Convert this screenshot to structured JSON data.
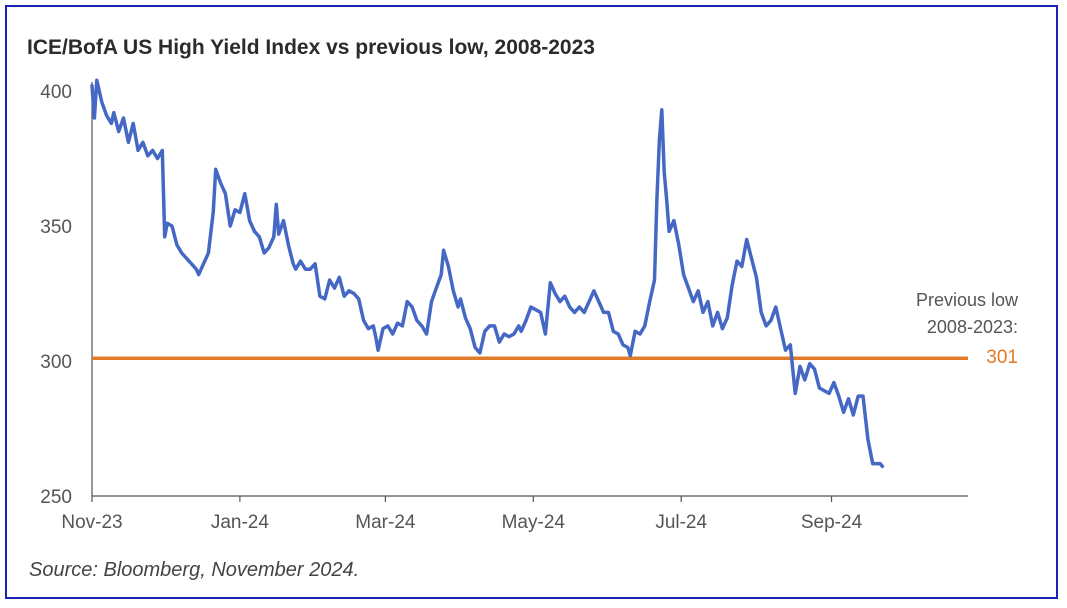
{
  "chart_data": {
    "type": "line",
    "title": "ICE/BofA US High Yield Index vs previous low, 2008-2023",
    "xlabel": "",
    "ylabel": "",
    "ylim": [
      250,
      400
    ],
    "yticks": [
      400,
      350,
      300,
      250
    ],
    "x_tick_labels": [
      "Nov-23",
      "Jan-24",
      "Mar-24",
      "May-24",
      "Jul-24",
      "Sep-24"
    ],
    "x_tick_day_offsets": [
      0,
      61,
      121,
      182,
      243,
      305
    ],
    "x_range_days": [
      0,
      365
    ],
    "series": [
      {
        "name": "ICE/BofA US High Yield Index",
        "color": "#4468c4",
        "points": [
          [
            0,
            402
          ],
          [
            1,
            390
          ],
          [
            2,
            404
          ],
          [
            4,
            396
          ],
          [
            6,
            391
          ],
          [
            8,
            388
          ],
          [
            9,
            392
          ],
          [
            11,
            385
          ],
          [
            13,
            390
          ],
          [
            15,
            381
          ],
          [
            17,
            388
          ],
          [
            19,
            378
          ],
          [
            21,
            381
          ],
          [
            23,
            376
          ],
          [
            25,
            378
          ],
          [
            27,
            375
          ],
          [
            29,
            378
          ],
          [
            30,
            346
          ],
          [
            31,
            351
          ],
          [
            33,
            350
          ],
          [
            35,
            343
          ],
          [
            37,
            340
          ],
          [
            40,
            337
          ],
          [
            43,
            334
          ],
          [
            44,
            332
          ],
          [
            46,
            336
          ],
          [
            48,
            340
          ],
          [
            50,
            355
          ],
          [
            51,
            371
          ],
          [
            53,
            366
          ],
          [
            55,
            362
          ],
          [
            57,
            350
          ],
          [
            59,
            356
          ],
          [
            61,
            355
          ],
          [
            63,
            362
          ],
          [
            65,
            352
          ],
          [
            67,
            348
          ],
          [
            69,
            346
          ],
          [
            71,
            340
          ],
          [
            73,
            342
          ],
          [
            75,
            346
          ],
          [
            76,
            358
          ],
          [
            77,
            347
          ],
          [
            79,
            352
          ],
          [
            81,
            343
          ],
          [
            83,
            336
          ],
          [
            84,
            334
          ],
          [
            86,
            337
          ],
          [
            88,
            334
          ],
          [
            90,
            334
          ],
          [
            92,
            336
          ],
          [
            94,
            324
          ],
          [
            96,
            323
          ],
          [
            98,
            330
          ],
          [
            100,
            327
          ],
          [
            102,
            331
          ],
          [
            104,
            324
          ],
          [
            106,
            326
          ],
          [
            108,
            325
          ],
          [
            110,
            323
          ],
          [
            112,
            315
          ],
          [
            114,
            312
          ],
          [
            116,
            313
          ],
          [
            117,
            309
          ],
          [
            118,
            304
          ],
          [
            120,
            312
          ],
          [
            122,
            313
          ],
          [
            124,
            310
          ],
          [
            126,
            314
          ],
          [
            128,
            313
          ],
          [
            130,
            322
          ],
          [
            132,
            320
          ],
          [
            134,
            315
          ],
          [
            136,
            313
          ],
          [
            138,
            310
          ],
          [
            140,
            322
          ],
          [
            142,
            327
          ],
          [
            144,
            332
          ],
          [
            145,
            341
          ],
          [
            147,
            335
          ],
          [
            149,
            326
          ],
          [
            151,
            320
          ],
          [
            152,
            323
          ],
          [
            154,
            316
          ],
          [
            156,
            312
          ],
          [
            158,
            305
          ],
          [
            160,
            303
          ],
          [
            162,
            311
          ],
          [
            164,
            313
          ],
          [
            166,
            313
          ],
          [
            168,
            307
          ],
          [
            170,
            310
          ],
          [
            172,
            309
          ],
          [
            174,
            310
          ],
          [
            176,
            313
          ],
          [
            177,
            311
          ],
          [
            179,
            315
          ],
          [
            181,
            320
          ],
          [
            183,
            319
          ],
          [
            185,
            318
          ],
          [
            187,
            310
          ],
          [
            189,
            329
          ],
          [
            191,
            325
          ],
          [
            193,
            322
          ],
          [
            195,
            324
          ],
          [
            197,
            320
          ],
          [
            199,
            318
          ],
          [
            201,
            320
          ],
          [
            203,
            318
          ],
          [
            205,
            322
          ],
          [
            207,
            326
          ],
          [
            209,
            322
          ],
          [
            211,
            318
          ],
          [
            213,
            318
          ],
          [
            215,
            311
          ],
          [
            217,
            310
          ],
          [
            219,
            306
          ],
          [
            221,
            305
          ],
          [
            222,
            302
          ],
          [
            224,
            311
          ],
          [
            226,
            310
          ],
          [
            228,
            313
          ],
          [
            230,
            322
          ],
          [
            232,
            330
          ],
          [
            233,
            360
          ],
          [
            234,
            382
          ],
          [
            235,
            393
          ],
          [
            236,
            370
          ],
          [
            237,
            360
          ],
          [
            238,
            348
          ],
          [
            240,
            352
          ],
          [
            242,
            343
          ],
          [
            244,
            332
          ],
          [
            246,
            327
          ],
          [
            248,
            322
          ],
          [
            250,
            326
          ],
          [
            252,
            318
          ],
          [
            254,
            322
          ],
          [
            256,
            313
          ],
          [
            258,
            318
          ],
          [
            260,
            312
          ],
          [
            262,
            316
          ],
          [
            264,
            328
          ],
          [
            266,
            337
          ],
          [
            268,
            335
          ],
          [
            270,
            345
          ],
          [
            272,
            338
          ],
          [
            274,
            331
          ],
          [
            276,
            318
          ],
          [
            278,
            313
          ],
          [
            280,
            315
          ],
          [
            282,
            320
          ],
          [
            284,
            312
          ],
          [
            286,
            304
          ],
          [
            288,
            306
          ],
          [
            290,
            288
          ],
          [
            292,
            298
          ],
          [
            294,
            293
          ],
          [
            296,
            299
          ],
          [
            298,
            297
          ],
          [
            300,
            290
          ],
          [
            302,
            289
          ],
          [
            304,
            288
          ],
          [
            306,
            292
          ],
          [
            308,
            287
          ],
          [
            310,
            281
          ],
          [
            312,
            286
          ],
          [
            314,
            280
          ],
          [
            316,
            287
          ],
          [
            318,
            287
          ],
          [
            320,
            271
          ],
          [
            322,
            262
          ],
          [
            324,
            262
          ],
          [
            325,
            262
          ],
          [
            326,
            261
          ]
        ]
      }
    ],
    "reference_line": {
      "label_line1": "Previous low",
      "label_line2": "2008-2023:",
      "value": 301,
      "value_label": "301",
      "color": "#e07b28"
    },
    "grid": false,
    "source": "Source: Bloomberg, November 2024."
  }
}
